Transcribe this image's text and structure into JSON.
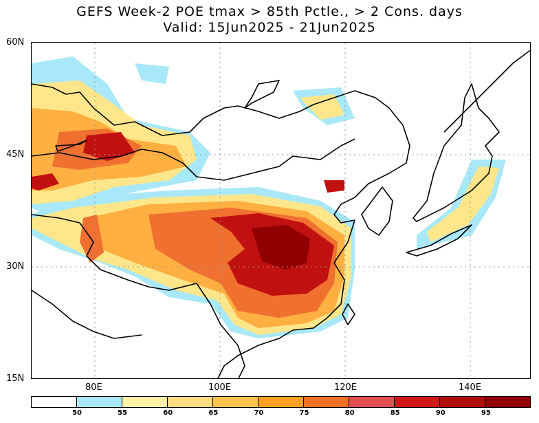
{
  "title_line1": "GEFS Week-2 POE tmax > 85th Pctle., > 2 Cons. days",
  "title_line2": "Valid: 15Jun2025 - 21Jun2025",
  "lat_labels": [
    "60N",
    "45N",
    "30N",
    "15N"
  ],
  "lon_labels": [
    "80E",
    "100E",
    "120E",
    "140E"
  ],
  "colorbar": {
    "colors": [
      "#ffffff",
      "#a8e8f8",
      "#fff2a8",
      "#ffdc80",
      "#ffc24e",
      "#ffa020",
      "#f47024",
      "#e05050",
      "#d01818",
      "#b00c0c",
      "#900000"
    ],
    "labels": [
      "50",
      "55",
      "60",
      "65",
      "70",
      "75",
      "80",
      "85",
      "90",
      "95"
    ]
  }
}
